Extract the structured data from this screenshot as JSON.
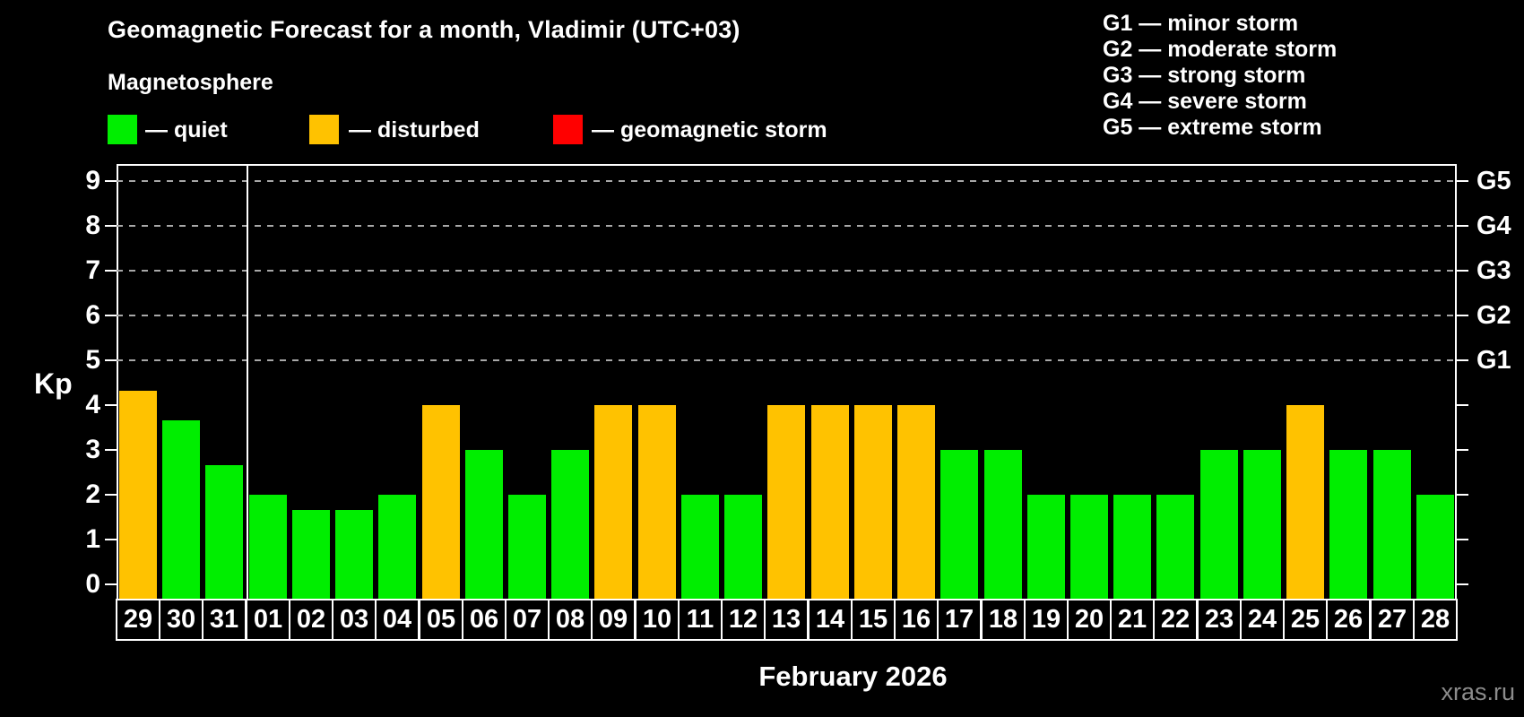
{
  "header": {
    "title": "Geomagnetic Forecast for a month, Vladimir (UTC+03)",
    "subtitle": "Magnetosphere",
    "legend": [
      {
        "status": "quiet",
        "label": "— quiet"
      },
      {
        "status": "disturbed",
        "label": "— disturbed"
      },
      {
        "status": "storm",
        "label": "— geomagnetic storm"
      }
    ]
  },
  "g_legend": [
    "G1 — minor storm",
    "G2 — moderate storm",
    "G3 — strong storm",
    "G4 — severe storm",
    "G5 — extreme storm"
  ],
  "colors": {
    "quiet": "#00EE00",
    "disturbed": "#FFC200",
    "storm": "#FF0000",
    "grid": "#A8A8A8",
    "axis": "#FFFFFF",
    "watermark": "#8C8C8C",
    "background": "#000000"
  },
  "chart_data": {
    "type": "bar",
    "title": "Geomagnetic Forecast for a month, Vladimir (UTC+03)",
    "subtitle": "Magnetosphere",
    "ylabel": "Kp",
    "xlabel": "February 2026",
    "ylim": [
      0,
      9
    ],
    "yticks": [
      0,
      1,
      2,
      3,
      4,
      5,
      6,
      7,
      8,
      9
    ],
    "gridlines_at": [
      5,
      6,
      7,
      8,
      9
    ],
    "grid_style": "dashed horizontal, only Kp 5–9",
    "legend_position": "top-left",
    "right_axis": [
      {
        "kp": 5,
        "label": "G1"
      },
      {
        "kp": 6,
        "label": "G2"
      },
      {
        "kp": 7,
        "label": "G3"
      },
      {
        "kp": 8,
        "label": "G4"
      },
      {
        "kp": 9,
        "label": "G5"
      }
    ],
    "month_separator_after_index": 2,
    "categories": [
      "29",
      "30",
      "31",
      "01",
      "02",
      "03",
      "04",
      "05",
      "06",
      "07",
      "08",
      "09",
      "10",
      "11",
      "12",
      "13",
      "14",
      "15",
      "16",
      "17",
      "18",
      "19",
      "20",
      "21",
      "22",
      "23",
      "24",
      "25",
      "26",
      "27",
      "28"
    ],
    "bars": [
      {
        "day": "29",
        "kp": 4.33,
        "status": "disturbed"
      },
      {
        "day": "30",
        "kp": 3.67,
        "status": "quiet"
      },
      {
        "day": "31",
        "kp": 2.67,
        "status": "quiet"
      },
      {
        "day": "01",
        "kp": 2.0,
        "status": "quiet"
      },
      {
        "day": "02",
        "kp": 1.67,
        "status": "quiet"
      },
      {
        "day": "03",
        "kp": 1.67,
        "status": "quiet"
      },
      {
        "day": "04",
        "kp": 2.0,
        "status": "quiet"
      },
      {
        "day": "05",
        "kp": 4.0,
        "status": "disturbed"
      },
      {
        "day": "06",
        "kp": 3.0,
        "status": "quiet"
      },
      {
        "day": "07",
        "kp": 2.0,
        "status": "quiet"
      },
      {
        "day": "08",
        "kp": 3.0,
        "status": "quiet"
      },
      {
        "day": "09",
        "kp": 4.0,
        "status": "disturbed"
      },
      {
        "day": "10",
        "kp": 4.0,
        "status": "disturbed"
      },
      {
        "day": "11",
        "kp": 2.0,
        "status": "quiet"
      },
      {
        "day": "12",
        "kp": 2.0,
        "status": "quiet"
      },
      {
        "day": "13",
        "kp": 4.0,
        "status": "disturbed"
      },
      {
        "day": "14",
        "kp": 4.0,
        "status": "disturbed"
      },
      {
        "day": "15",
        "kp": 4.0,
        "status": "disturbed"
      },
      {
        "day": "16",
        "kp": 4.0,
        "status": "disturbed"
      },
      {
        "day": "17",
        "kp": 3.0,
        "status": "quiet"
      },
      {
        "day": "18",
        "kp": 3.0,
        "status": "quiet"
      },
      {
        "day": "19",
        "kp": 2.0,
        "status": "quiet"
      },
      {
        "day": "20",
        "kp": 2.0,
        "status": "quiet"
      },
      {
        "day": "21",
        "kp": 2.0,
        "status": "quiet"
      },
      {
        "day": "22",
        "kp": 2.0,
        "status": "quiet"
      },
      {
        "day": "23",
        "kp": 3.0,
        "status": "quiet"
      },
      {
        "day": "24",
        "kp": 3.0,
        "status": "quiet"
      },
      {
        "day": "25",
        "kp": 4.0,
        "status": "disturbed"
      },
      {
        "day": "26",
        "kp": 3.0,
        "status": "quiet"
      },
      {
        "day": "27",
        "kp": 3.0,
        "status": "quiet"
      },
      {
        "day": "28",
        "kp": 2.0,
        "status": "quiet"
      }
    ]
  },
  "footer": {
    "watermark": "xras.ru"
  }
}
